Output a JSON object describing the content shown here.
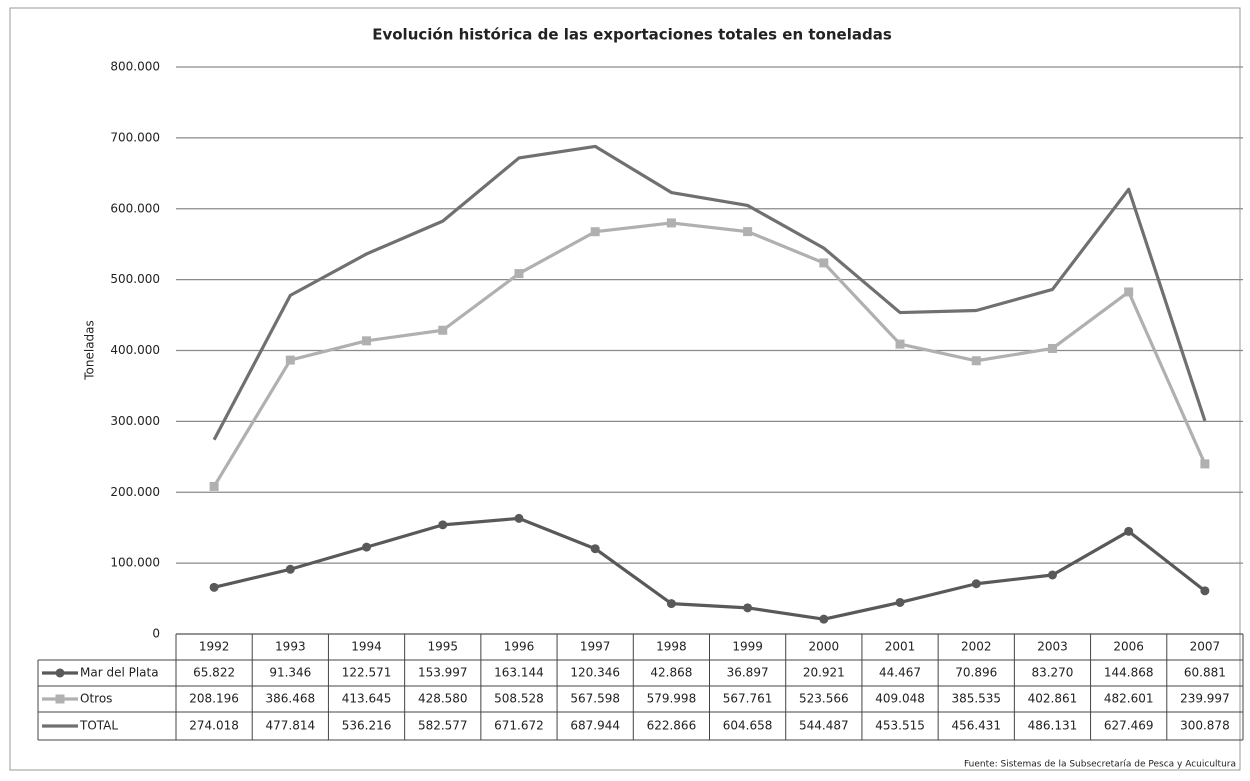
{
  "chart_data": {
    "type": "line",
    "title": "Evolución histórica de las exportaciones totales en toneladas",
    "y_label": "Toneladas",
    "source": "Fuente: Sistemas de la Subsecretaría de Pesca y Acuicultura",
    "categories": [
      "1992",
      "1993",
      "1994",
      "1995",
      "1996",
      "1997",
      "1998",
      "1999",
      "2000",
      "2001",
      "2002",
      "2003",
      "2006",
      "2007"
    ],
    "series": [
      {
        "name": "Mar del Plata",
        "color": "#595959",
        "marker": "circle",
        "values": [
          65822,
          91346,
          122571,
          153997,
          163144,
          120346,
          42868,
          36897,
          20921,
          44467,
          70896,
          83270,
          144868,
          60881
        ],
        "value_labels": [
          "65.822",
          "91.346",
          "122.571",
          "153.997",
          "163.144",
          "120.346",
          "42.868",
          "36.897",
          "20.921",
          "44.467",
          "70.896",
          "83.270",
          "144.868",
          "60.881"
        ]
      },
      {
        "name": "Otros",
        "color": "#b0b0b0",
        "marker": "square",
        "values": [
          208196,
          386468,
          413645,
          428580,
          508528,
          567598,
          579998,
          567761,
          523566,
          409048,
          385535,
          402861,
          482601,
          239997
        ],
        "value_labels": [
          "208.196",
          "386.468",
          "413.645",
          "428.580",
          "508.528",
          "567.598",
          "579.998",
          "567.761",
          "523.566",
          "409.048",
          "385.535",
          "402.861",
          "482.601",
          "239.997"
        ]
      },
      {
        "name": "TOTAL",
        "color": "#707070",
        "marker": "none",
        "values": [
          274018,
          477814,
          536216,
          582577,
          671672,
          687944,
          622866,
          604658,
          544487,
          453515,
          456431,
          486131,
          627469,
          300878
        ],
        "value_labels": [
          "274.018",
          "477.814",
          "536.216",
          "582.577",
          "671.672",
          "687.944",
          "622.866",
          "604.658",
          "544.487",
          "453.515",
          "456.431",
          "486.131",
          "627.469",
          "300.878"
        ]
      }
    ],
    "ylim": [
      0,
      800000
    ],
    "yticks": [
      0,
      {
        "value": 100000,
        "label": "100.000"
      },
      {
        "value": 200000,
        "label": "200.000"
      },
      {
        "value": 300000,
        "label": "300.000"
      },
      {
        "value": 400000,
        "label": "400.000"
      },
      {
        "value": 500000,
        "label": "500.000"
      },
      {
        "value": 600000,
        "label": "600.000"
      },
      {
        "value": 700000,
        "label": "700.000"
      },
      {
        "value": 800000,
        "label": "800.000"
      }
    ],
    "grid": true
  }
}
